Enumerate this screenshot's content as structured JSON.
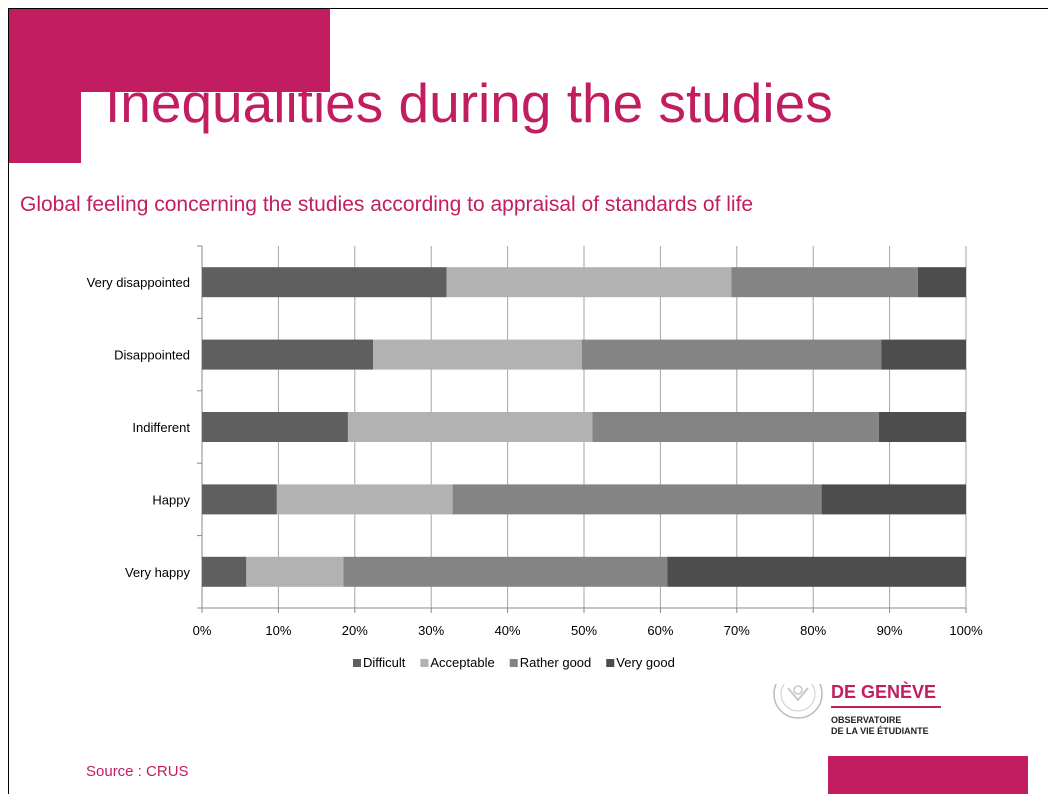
{
  "colors": {
    "accent": "#c31d61",
    "series": [
      "#5f5f5f",
      "#b2b2b2",
      "#848484",
      "#4d4d4d"
    ]
  },
  "slide": {
    "title": "Inequalities during the studies",
    "source": "Source : CRUS"
  },
  "logo": {
    "name": "DE GENÈVE",
    "line1": "OBSERVATOIRE",
    "line2": "DE LA VIE ÉTUDIANTE"
  },
  "chart_data": {
    "type": "bar",
    "orientation": "horizontal",
    "stacked": "percent",
    "title": "Global feeling concerning the studies according to appraisal of standards of life",
    "categories": [
      "Very disappointed",
      "Disappointed",
      "Indifferent",
      "Happy",
      "Very happy"
    ],
    "series": [
      {
        "name": "Difficult",
        "values": [
          32,
          22.4,
          19.1,
          9.8,
          5.8
        ]
      },
      {
        "name": "Acceptable",
        "values": [
          37.3,
          27.3,
          32,
          23,
          12.7
        ]
      },
      {
        "name": "Rather good",
        "values": [
          24.4,
          39.2,
          37.5,
          48.3,
          42.4
        ]
      },
      {
        "name": "Very good",
        "values": [
          6.3,
          11.1,
          11.4,
          18.9,
          39.1
        ]
      }
    ],
    "xlim": [
      0,
      100
    ],
    "xticks": [
      "0%",
      "10%",
      "20%",
      "30%",
      "40%",
      "50%",
      "60%",
      "70%",
      "80%",
      "90%",
      "100%"
    ],
    "grid": "vertical",
    "legend": "bottom"
  }
}
